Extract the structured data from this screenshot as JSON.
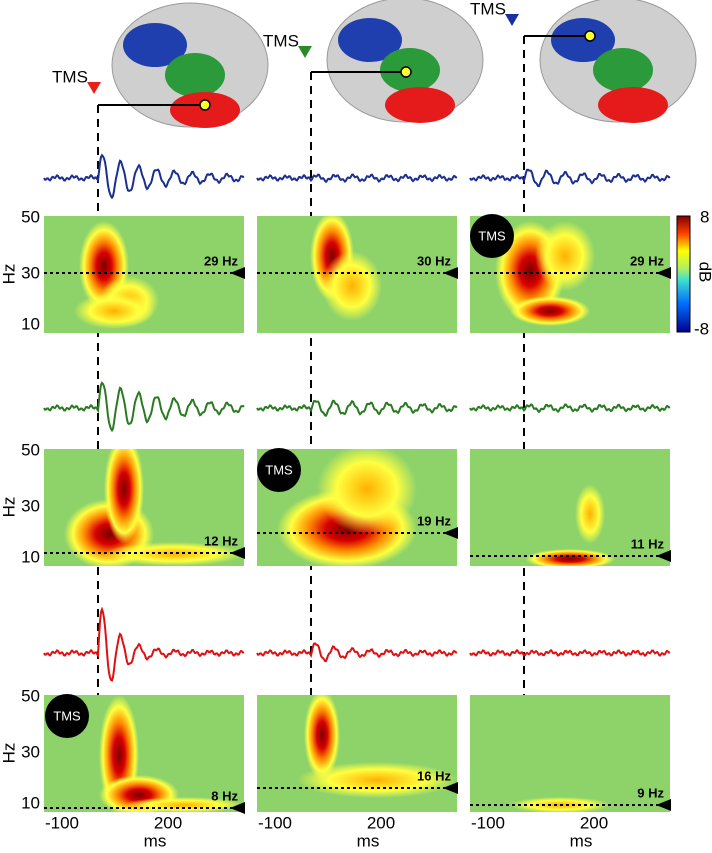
{
  "stim_labels": [
    "TMS",
    "TMS",
    "TMS"
  ],
  "y_axis": {
    "label": "Hz",
    "ticks": [
      50,
      30,
      10
    ]
  },
  "x_axis": {
    "label": "ms",
    "ticks": [
      -100,
      200
    ]
  },
  "colorbar": {
    "label": "dB",
    "max": 8,
    "min": -8
  },
  "rows": [
    {
      "peaks": [
        "29 Hz",
        "30 Hz",
        "29 Hz"
      ],
      "badge": "TMS"
    },
    {
      "peaks": [
        "12 Hz",
        "19 Hz",
        "11 Hz"
      ],
      "badge": "TMS"
    },
    {
      "peaks": [
        "8 Hz",
        "16 Hz",
        "9 Hz"
      ],
      "badge": "TMS"
    }
  ]
}
